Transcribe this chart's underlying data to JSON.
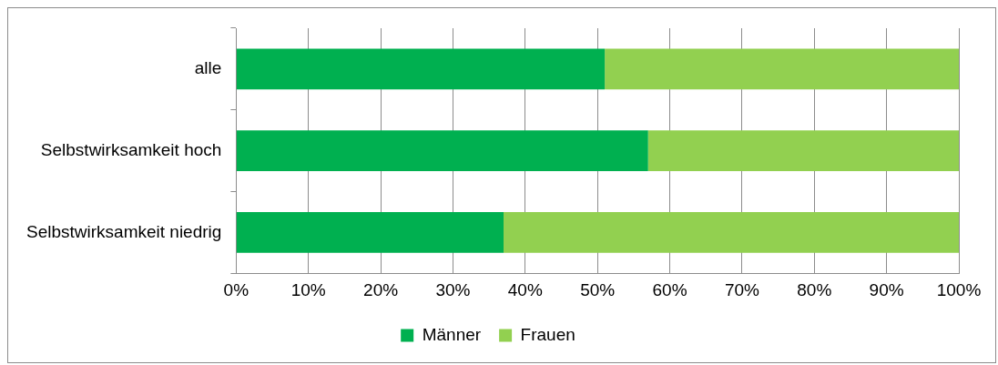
{
  "chart_data": {
    "type": "bar",
    "orientation": "horizontal",
    "stacked": true,
    "categories": [
      "alle",
      "Selbstwirksamkeit hoch",
      "Selbstwirksamkeit niedrig"
    ],
    "series": [
      {
        "name": "Männer",
        "color": "#00b050",
        "values": [
          51,
          57,
          37
        ]
      },
      {
        "name": "Frauen",
        "color": "#92d050",
        "values": [
          49,
          43,
          63
        ]
      }
    ],
    "xlim": [
      0,
      100
    ],
    "xticks": [
      {
        "value": 0,
        "label": "0%"
      },
      {
        "value": 10,
        "label": "10%"
      },
      {
        "value": 20,
        "label": "20%"
      },
      {
        "value": 30,
        "label": "30%"
      },
      {
        "value": 40,
        "label": "40%"
      },
      {
        "value": 50,
        "label": "50%"
      },
      {
        "value": 60,
        "label": "60%"
      },
      {
        "value": 70,
        "label": "70%"
      },
      {
        "value": 80,
        "label": "80%"
      },
      {
        "value": 90,
        "label": "90%"
      },
      {
        "value": 100,
        "label": "100%"
      }
    ],
    "grid": "x",
    "legend": "bottom"
  }
}
